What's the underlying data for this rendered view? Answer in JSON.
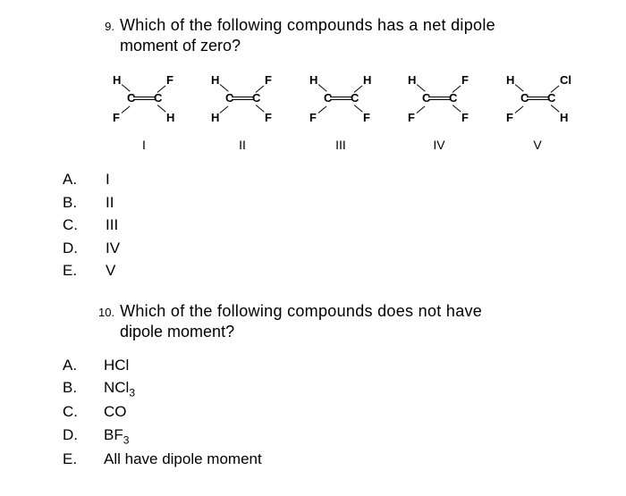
{
  "q9": {
    "number": "9.",
    "text_line1": "Which of the following compounds has a net dipole",
    "text_line2": "moment of zero?",
    "structures": [
      {
        "tl": "H",
        "tr": "F",
        "bl": "F",
        "br": "H",
        "label": "I"
      },
      {
        "tl": "H",
        "tr": "F",
        "bl": "H",
        "br": "F",
        "label": "II"
      },
      {
        "tl": "H",
        "tr": "H",
        "bl": "F",
        "br": "F",
        "label": "III"
      },
      {
        "tl": "H",
        "tr": "F",
        "bl": "F",
        "br": "F",
        "label": "IV"
      },
      {
        "tl": "H",
        "tr": "Cl",
        "bl": "F",
        "br": "H",
        "label": "V"
      }
    ],
    "choices": [
      {
        "letter": "A.",
        "text": "I"
      },
      {
        "letter": "B.",
        "text": "II"
      },
      {
        "letter": "C.",
        "text": "III"
      },
      {
        "letter": "D.",
        "text": "IV"
      },
      {
        "letter": "E.",
        "text": "V"
      }
    ]
  },
  "q10": {
    "number": "10.",
    "text_line1": "Which of the following compounds does not have",
    "text_line2": "dipole moment?",
    "choices": [
      {
        "letter": "A.",
        "text": "HCl"
      },
      {
        "letter": "B.",
        "text": "NCl",
        "sub": "3"
      },
      {
        "letter": "C.",
        "text": "CO"
      },
      {
        "letter": "D.",
        "text": "BF",
        "sub": "3"
      },
      {
        "letter": "E.",
        "text": "All have dipole moment"
      }
    ]
  }
}
